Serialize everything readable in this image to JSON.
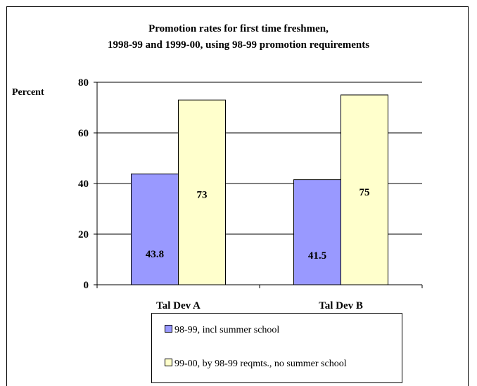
{
  "chart_data": {
    "type": "bar",
    "title_lines": [
      "Promotion rates for first time freshmen,",
      "1998-99 and 1999-00, using 98-99 promotion requirements"
    ],
    "ylabel": "Percent",
    "ylim": [
      0,
      80
    ],
    "yticks": [
      0,
      20,
      40,
      60,
      80
    ],
    "categories": [
      "Tal Dev A",
      "Tal Dev B"
    ],
    "series": [
      {
        "name": "98-99, incl summer school",
        "values": [
          43.8,
          41.5
        ],
        "labels": [
          "43.8",
          "41.5"
        ],
        "color": "#9999ff"
      },
      {
        "name": "99-00, by 98-99 reqmts., no summer school",
        "values": [
          73,
          75
        ],
        "labels": [
          "73",
          "75"
        ],
        "color": "#ffffcc"
      }
    ],
    "grid": true,
    "legend_position": "bottom"
  }
}
